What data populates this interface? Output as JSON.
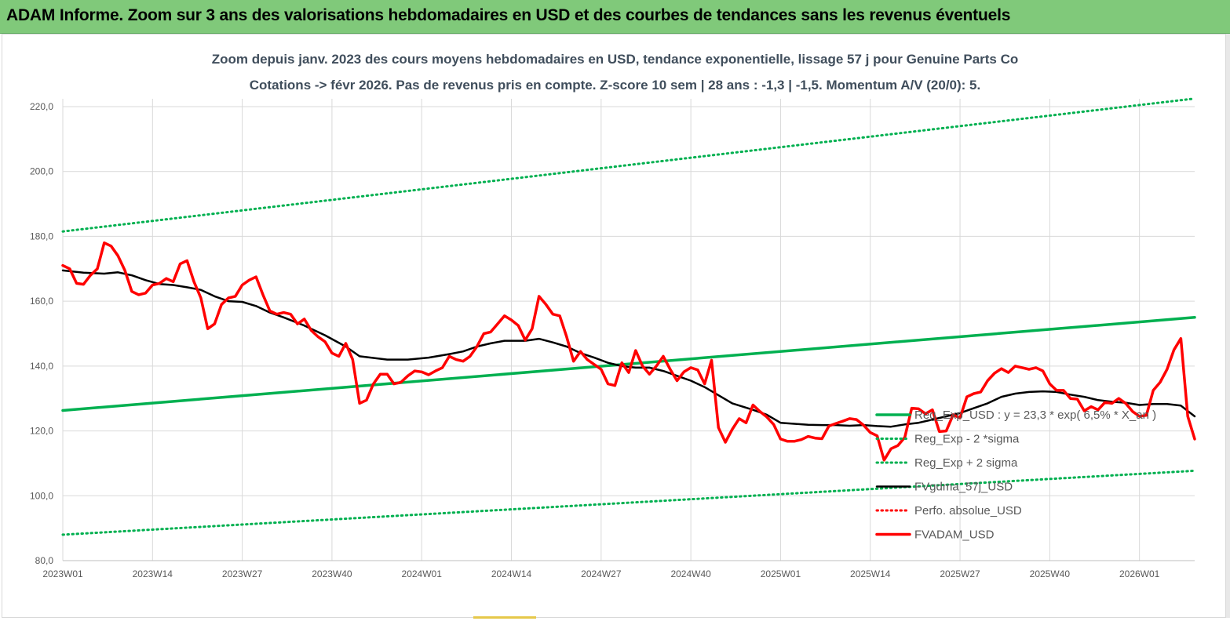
{
  "banner": {
    "title": "ADAM Informe. Zoom sur 3 ans des valorisations hebdomadaires en USD et des courbes de tendances sans les revenus éventuels"
  },
  "colors": {
    "banner": "#80c97a",
    "trend": "#00b050",
    "sigma": "#00b050",
    "smooth": "#000000",
    "price": "#ff0000",
    "perf": "#ff0000",
    "grid": "#d9d9d9"
  },
  "chart_data": {
    "type": "line",
    "title_line1": "Zoom depuis janv. 2023 des cours moyens hebdomadaires en USD, tendance exponentielle, lissage 57 j pour Genuine Parts Co",
    "title_line2": "Cotations -> févr 2026.  Pas de revenus pris en compte. Z-score 10 sem | 28 ans : -1,3 | -1,5. Momentum A/V (20/0): 5.",
    "ylim": [
      80,
      225
    ],
    "y_ticks": [
      80,
      100,
      120,
      140,
      160,
      180,
      200,
      220
    ],
    "y_tick_labels": [
      "80,0",
      "100,0",
      "120,0",
      "140,0",
      "160,0",
      "180,0",
      "200,0",
      "220,0"
    ],
    "x_range": [
      0,
      164
    ],
    "x_ticks": [
      0,
      13,
      26,
      39,
      52,
      65,
      78,
      91,
      104,
      117,
      130,
      143,
      156
    ],
    "x_tick_labels": [
      "2023W01",
      "2023W14",
      "2023W27",
      "2023W40",
      "2024W01",
      "2024W14",
      "2024W27",
      "2024W40",
      "2025W01",
      "2025W14",
      "2025W27",
      "2025W40",
      "2026W01"
    ],
    "grid": true,
    "legend_position": "bottom-right",
    "series": [
      {
        "name": "Reg_Exp_USD : y = 23,3 * exp( 6,5% * X_an )",
        "style": "solid-thick",
        "color": "#00b050",
        "points": [
          [
            0,
            126.3
          ],
          [
            164,
            155.0
          ]
        ]
      },
      {
        "name": "Reg_Exp - 2 *sigma",
        "style": "dotted",
        "color": "#00b050",
        "points": [
          [
            0,
            88.0
          ],
          [
            164,
            107.7
          ]
        ]
      },
      {
        "name": "Reg_Exp + 2 sigma",
        "style": "dotted",
        "color": "#00b050",
        "points": [
          [
            0,
            181.5
          ],
          [
            164,
            222.5
          ]
        ]
      },
      {
        "name": "FVgdma_57j_USD",
        "style": "solid",
        "color": "#000000",
        "points": [
          [
            0,
            169.5
          ],
          [
            3,
            168.8
          ],
          [
            6,
            168.5
          ],
          [
            8,
            168.9
          ],
          [
            10,
            168.0
          ],
          [
            12,
            166.5
          ],
          [
            14,
            165.3
          ],
          [
            16,
            165.0
          ],
          [
            18,
            164.3
          ],
          [
            20,
            163.5
          ],
          [
            22,
            161.5
          ],
          [
            24,
            160.0
          ],
          [
            26,
            159.8
          ],
          [
            28,
            158.5
          ],
          [
            30,
            156.5
          ],
          [
            32,
            155.0
          ],
          [
            35,
            152.5
          ],
          [
            38,
            149.5
          ],
          [
            41,
            146.0
          ],
          [
            43,
            143.0
          ],
          [
            45,
            142.5
          ],
          [
            47,
            142.0
          ],
          [
            50,
            142.0
          ],
          [
            53,
            142.6
          ],
          [
            56,
            143.7
          ],
          [
            58,
            144.5
          ],
          [
            60,
            146.0
          ],
          [
            62,
            147.0
          ],
          [
            64,
            147.8
          ],
          [
            67,
            147.8
          ],
          [
            69,
            148.4
          ],
          [
            71,
            147.3
          ],
          [
            73,
            146.0
          ],
          [
            75,
            144.0
          ],
          [
            77,
            142.6
          ],
          [
            79,
            141.0
          ],
          [
            81,
            140.0
          ],
          [
            83,
            139.5
          ],
          [
            85,
            139.5
          ],
          [
            87,
            138.5
          ],
          [
            89,
            137.0
          ],
          [
            91,
            135.5
          ],
          [
            93,
            133.5
          ],
          [
            95,
            131.0
          ],
          [
            97,
            128.5
          ],
          [
            100,
            126.5
          ],
          [
            102,
            125.0
          ],
          [
            104,
            122.5
          ],
          [
            106,
            122.2
          ],
          [
            108,
            121.9
          ],
          [
            110,
            121.8
          ],
          [
            112,
            121.8
          ],
          [
            114,
            121.6
          ],
          [
            116,
            121.8
          ],
          [
            118,
            121.5
          ],
          [
            120,
            121.3
          ],
          [
            122,
            122.0
          ],
          [
            124,
            122.5
          ],
          [
            126,
            123.5
          ],
          [
            128,
            124.5
          ],
          [
            130,
            125.5
          ],
          [
            132,
            127.0
          ],
          [
            134,
            128.5
          ],
          [
            136,
            130.5
          ],
          [
            138,
            131.5
          ],
          [
            140,
            132.0
          ],
          [
            142,
            132.2
          ],
          [
            144,
            132.0
          ],
          [
            146,
            131.2
          ],
          [
            148,
            130.5
          ],
          [
            150,
            129.5
          ],
          [
            152,
            129.0
          ],
          [
            154,
            128.7
          ],
          [
            156,
            128.0
          ],
          [
            158,
            128.3
          ],
          [
            160,
            128.3
          ],
          [
            162,
            127.8
          ],
          [
            164,
            124.5
          ]
        ]
      },
      {
        "name": "Perfo. absolue_USD",
        "style": "dotted",
        "color": "#ff0000",
        "points": []
      },
      {
        "name": "FVADAM_USD",
        "style": "solid-thick",
        "color": "#ff0000",
        "points": [
          [
            0,
            171
          ],
          [
            1,
            170
          ],
          [
            2,
            165.5
          ],
          [
            3,
            165.2
          ],
          [
            4,
            168
          ],
          [
            5,
            170
          ],
          [
            6,
            178
          ],
          [
            7,
            177
          ],
          [
            8,
            174
          ],
          [
            9,
            169.5
          ],
          [
            10,
            163
          ],
          [
            11,
            162
          ],
          [
            12,
            162.5
          ],
          [
            13,
            165
          ],
          [
            14,
            165.5
          ],
          [
            15,
            167
          ],
          [
            16,
            166
          ],
          [
            17,
            171.5
          ],
          [
            18,
            172.5
          ],
          [
            19,
            166
          ],
          [
            20,
            161
          ],
          [
            21,
            151.5
          ],
          [
            22,
            153
          ],
          [
            23,
            159
          ],
          [
            24,
            161
          ],
          [
            25,
            161.5
          ],
          [
            26,
            165
          ],
          [
            27,
            166.5
          ],
          [
            28,
            167.5
          ],
          [
            29,
            162
          ],
          [
            30,
            157
          ],
          [
            31,
            156
          ],
          [
            32,
            156.5
          ],
          [
            33,
            156
          ],
          [
            34,
            153
          ],
          [
            35,
            154.5
          ],
          [
            36,
            151
          ],
          [
            37,
            149
          ],
          [
            38,
            147.5
          ],
          [
            39,
            144
          ],
          [
            40,
            143
          ],
          [
            41,
            147
          ],
          [
            42,
            142
          ],
          [
            43,
            128.5
          ],
          [
            44,
            129.5
          ],
          [
            45,
            134.5
          ],
          [
            46,
            137.5
          ],
          [
            47,
            137.5
          ],
          [
            48,
            134.5
          ],
          [
            49,
            135
          ],
          [
            50,
            137
          ],
          [
            51,
            138.5
          ],
          [
            52,
            138.2
          ],
          [
            53,
            137.3
          ],
          [
            54,
            138.5
          ],
          [
            55,
            139.5
          ],
          [
            56,
            143
          ],
          [
            57,
            142
          ],
          [
            58,
            141.5
          ],
          [
            59,
            143
          ],
          [
            60,
            146
          ],
          [
            61,
            150
          ],
          [
            62,
            150.5
          ],
          [
            63,
            153
          ],
          [
            64,
            155.5
          ],
          [
            65,
            154.2
          ],
          [
            66,
            152.5
          ],
          [
            67,
            148
          ],
          [
            68,
            151.5
          ],
          [
            69,
            161.5
          ],
          [
            70,
            159
          ],
          [
            71,
            156
          ],
          [
            72,
            155.5
          ],
          [
            73,
            149
          ],
          [
            74,
            141.5
          ],
          [
            75,
            144.5
          ],
          [
            76,
            142
          ],
          [
            77,
            140.5
          ],
          [
            78,
            139
          ],
          [
            79,
            134.5
          ],
          [
            80,
            134
          ],
          [
            81,
            141
          ],
          [
            82,
            138
          ],
          [
            83,
            144.8
          ],
          [
            84,
            140
          ],
          [
            85,
            137.5
          ],
          [
            86,
            140
          ],
          [
            87,
            143
          ],
          [
            88,
            139
          ],
          [
            89,
            135.5
          ],
          [
            90,
            138.2
          ],
          [
            91,
            139.5
          ],
          [
            92,
            138.8
          ],
          [
            93,
            134.5
          ],
          [
            94,
            141.8
          ],
          [
            95,
            121
          ],
          [
            96,
            116.5
          ],
          [
            97,
            120.5
          ],
          [
            98,
            123.8
          ],
          [
            99,
            122.5
          ],
          [
            100,
            128
          ],
          [
            101,
            126
          ],
          [
            102,
            124.3
          ],
          [
            103,
            122
          ],
          [
            104,
            117.5
          ],
          [
            105,
            116.8
          ],
          [
            106,
            116.8
          ],
          [
            107,
            117.3
          ],
          [
            108,
            118.3
          ],
          [
            109,
            117.8
          ],
          [
            110,
            117.6
          ],
          [
            111,
            121.5
          ],
          [
            112,
            122.3
          ],
          [
            113,
            123
          ],
          [
            114,
            123.8
          ],
          [
            115,
            123.5
          ],
          [
            116,
            121.8
          ],
          [
            117,
            119.5
          ],
          [
            118,
            118.5
          ],
          [
            119,
            111
          ],
          [
            120,
            114.5
          ],
          [
            121,
            115.5
          ],
          [
            122,
            118
          ],
          [
            123,
            127
          ],
          [
            124,
            126.8
          ],
          [
            125,
            125.3
          ],
          [
            126,
            126.5
          ],
          [
            127,
            119.8
          ],
          [
            128,
            120
          ],
          [
            129,
            125
          ],
          [
            130,
            124
          ],
          [
            131,
            130.5
          ],
          [
            132,
            131.5
          ],
          [
            133,
            132
          ],
          [
            134,
            135.5
          ],
          [
            135,
            137.8
          ],
          [
            136,
            139.2
          ],
          [
            137,
            138
          ],
          [
            138,
            140
          ],
          [
            139,
            139.5
          ],
          [
            140,
            139
          ],
          [
            141,
            139.5
          ],
          [
            142,
            138.5
          ],
          [
            143,
            134.5
          ],
          [
            144,
            132.5
          ],
          [
            145,
            132.5
          ],
          [
            146,
            130
          ],
          [
            147,
            129.8
          ],
          [
            148,
            126.2
          ],
          [
            149,
            127.5
          ],
          [
            150,
            126.5
          ],
          [
            151,
            128.8
          ],
          [
            152,
            128.5
          ],
          [
            153,
            130
          ],
          [
            154,
            128.5
          ],
          [
            155,
            126
          ],
          [
            156,
            124.5
          ],
          [
            157,
            124.8
          ],
          [
            158,
            132.5
          ],
          [
            159,
            135
          ],
          [
            160,
            139
          ],
          [
            161,
            145
          ],
          [
            162,
            148.5
          ],
          [
            163,
            124.5
          ],
          [
            164,
            117.5
          ]
        ]
      }
    ]
  }
}
